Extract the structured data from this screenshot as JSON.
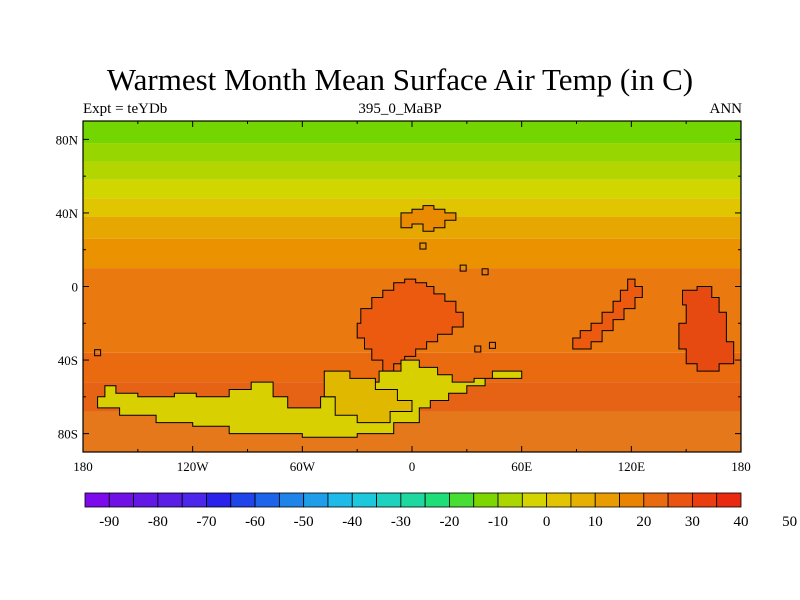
{
  "title": "Warmest Month Mean Surface Air Temp (in C)",
  "subtitle_left": "Expt = teYDb",
  "subtitle_center": "395_0_MaBP",
  "subtitle_right": "ANN",
  "map": {
    "projection": "cylindrical-equidistant",
    "lon_range": [
      -180,
      180
    ],
    "lat_range": [
      -90,
      90
    ],
    "lon_ticks": [
      {
        "value": -180,
        "label": "180"
      },
      {
        "value": -120,
        "label": "120W"
      },
      {
        "value": -60,
        "label": "60W"
      },
      {
        "value": 0,
        "label": "0"
      },
      {
        "value": 60,
        "label": "60E"
      },
      {
        "value": 120,
        "label": "120E"
      },
      {
        "value": 180,
        "label": "180"
      }
    ],
    "lat_ticks": [
      {
        "value": 80,
        "label": "80N"
      },
      {
        "value": 40,
        "label": "40N"
      },
      {
        "value": 0,
        "label": "0"
      },
      {
        "value": -40,
        "label": "40S"
      },
      {
        "value": -80,
        "label": "80S"
      }
    ],
    "zonal_bands": [
      {
        "lat_from": 90,
        "lat_to": 78,
        "color": "#74d600"
      },
      {
        "lat_from": 78,
        "lat_to": 68,
        "color": "#97d600"
      },
      {
        "lat_from": 68,
        "lat_to": 58,
        "color": "#b4d600"
      },
      {
        "lat_from": 58,
        "lat_to": 48,
        "color": "#d2d600"
      },
      {
        "lat_from": 48,
        "lat_to": 38,
        "color": "#e0c600"
      },
      {
        "lat_from": 38,
        "lat_to": 26,
        "color": "#e6a800"
      },
      {
        "lat_from": 26,
        "lat_to": 10,
        "color": "#ea9200"
      },
      {
        "lat_from": 10,
        "lat_to": -36,
        "color": "#ea7a10"
      },
      {
        "lat_from": -36,
        "lat_to": -52,
        "color": "#ea6a10"
      },
      {
        "lat_from": -52,
        "lat_to": -68,
        "color": "#e66214"
      },
      {
        "lat_from": -68,
        "lat_to": -90,
        "color": "#e6781c"
      }
    ],
    "continents": [
      {
        "name": "north-block",
        "fill": "#ea8a00",
        "points": [
          [
            -6,
            40
          ],
          [
            0,
            40
          ],
          [
            0,
            42
          ],
          [
            6,
            42
          ],
          [
            6,
            44
          ],
          [
            12,
            44
          ],
          [
            12,
            42
          ],
          [
            18,
            42
          ],
          [
            18,
            40
          ],
          [
            24,
            40
          ],
          [
            24,
            36
          ],
          [
            18,
            36
          ],
          [
            18,
            32
          ],
          [
            12,
            32
          ],
          [
            12,
            30
          ],
          [
            6,
            30
          ],
          [
            6,
            34
          ],
          [
            0,
            34
          ],
          [
            0,
            32
          ],
          [
            -6,
            32
          ]
        ]
      },
      {
        "name": "central-block",
        "fill": "#ec5a10",
        "points": [
          [
            -28,
            -12
          ],
          [
            -22,
            -12
          ],
          [
            -22,
            -6
          ],
          [
            -16,
            -6
          ],
          [
            -16,
            -2
          ],
          [
            -10,
            -2
          ],
          [
            -10,
            2
          ],
          [
            -4,
            2
          ],
          [
            -4,
            4
          ],
          [
            0,
            4
          ],
          [
            2,
            4
          ],
          [
            2,
            2
          ],
          [
            8,
            2
          ],
          [
            8,
            0
          ],
          [
            12,
            0
          ],
          [
            12,
            -4
          ],
          [
            18,
            -4
          ],
          [
            18,
            -8
          ],
          [
            24,
            -8
          ],
          [
            24,
            -14
          ],
          [
            28,
            -14
          ],
          [
            28,
            -22
          ],
          [
            22,
            -22
          ],
          [
            22,
            -26
          ],
          [
            14,
            -26
          ],
          [
            14,
            -30
          ],
          [
            8,
            -30
          ],
          [
            8,
            -34
          ],
          [
            2,
            -34
          ],
          [
            2,
            -38
          ],
          [
            -4,
            -38
          ],
          [
            -4,
            -42
          ],
          [
            -10,
            -42
          ],
          [
            -10,
            -46
          ],
          [
            -16,
            -46
          ],
          [
            -16,
            -40
          ],
          [
            -22,
            -40
          ],
          [
            -22,
            -34
          ],
          [
            -26,
            -34
          ],
          [
            -26,
            -28
          ],
          [
            -30,
            -28
          ],
          [
            -30,
            -20
          ],
          [
            -28,
            -20
          ]
        ]
      },
      {
        "name": "east-arc",
        "fill": "#ec5a10",
        "points": [
          [
            88,
            -28
          ],
          [
            92,
            -28
          ],
          [
            92,
            -24
          ],
          [
            98,
            -24
          ],
          [
            98,
            -20
          ],
          [
            104,
            -20
          ],
          [
            104,
            -14
          ],
          [
            110,
            -14
          ],
          [
            110,
            -8
          ],
          [
            114,
            -8
          ],
          [
            114,
            -2
          ],
          [
            118,
            -2
          ],
          [
            118,
            4
          ],
          [
            122,
            4
          ],
          [
            122,
            0
          ],
          [
            126,
            0
          ],
          [
            126,
            -6
          ],
          [
            122,
            -6
          ],
          [
            122,
            -12
          ],
          [
            116,
            -12
          ],
          [
            116,
            -18
          ],
          [
            110,
            -18
          ],
          [
            110,
            -24
          ],
          [
            104,
            -24
          ],
          [
            104,
            -30
          ],
          [
            98,
            -30
          ],
          [
            98,
            -34
          ],
          [
            88,
            -34
          ]
        ]
      },
      {
        "name": "east-block",
        "fill": "#e64a10",
        "points": [
          [
            148,
            -2
          ],
          [
            156,
            -2
          ],
          [
            156,
            0
          ],
          [
            164,
            0
          ],
          [
            164,
            -6
          ],
          [
            168,
            -6
          ],
          [
            168,
            -14
          ],
          [
            172,
            -14
          ],
          [
            172,
            -30
          ],
          [
            176,
            -30
          ],
          [
            176,
            -42
          ],
          [
            168,
            -42
          ],
          [
            168,
            -46
          ],
          [
            156,
            -46
          ],
          [
            156,
            -42
          ],
          [
            150,
            -42
          ],
          [
            150,
            -34
          ],
          [
            146,
            -34
          ],
          [
            146,
            -20
          ],
          [
            150,
            -20
          ],
          [
            150,
            -10
          ],
          [
            148,
            -10
          ]
        ]
      },
      {
        "name": "south-ring",
        "fill": "#d8d000",
        "points": [
          [
            -168,
            -54
          ],
          [
            -162,
            -54
          ],
          [
            -162,
            -58
          ],
          [
            -150,
            -58
          ],
          [
            -150,
            -60
          ],
          [
            -130,
            -60
          ],
          [
            -130,
            -58
          ],
          [
            -118,
            -58
          ],
          [
            -118,
            -60
          ],
          [
            -100,
            -60
          ],
          [
            -100,
            -56
          ],
          [
            -88,
            -56
          ],
          [
            -88,
            -52
          ],
          [
            -76,
            -52
          ],
          [
            -76,
            -60
          ],
          [
            -68,
            -60
          ],
          [
            -68,
            -66
          ],
          [
            -50,
            -66
          ],
          [
            -50,
            -60
          ],
          [
            -34,
            -60
          ],
          [
            -34,
            -52
          ],
          [
            -18,
            -52
          ],
          [
            -18,
            -46
          ],
          [
            -6,
            -46
          ],
          [
            -6,
            -40
          ],
          [
            4,
            -40
          ],
          [
            4,
            -44
          ],
          [
            14,
            -44
          ],
          [
            14,
            -48
          ],
          [
            22,
            -48
          ],
          [
            22,
            -52
          ],
          [
            34,
            -52
          ],
          [
            34,
            -50
          ],
          [
            44,
            -50
          ],
          [
            44,
            -46
          ],
          [
            60,
            -46
          ],
          [
            60,
            -50
          ],
          [
            40,
            -50
          ],
          [
            40,
            -54
          ],
          [
            30,
            -54
          ],
          [
            30,
            -58
          ],
          [
            20,
            -58
          ],
          [
            20,
            -62
          ],
          [
            10,
            -62
          ],
          [
            10,
            -66
          ],
          [
            4,
            -66
          ],
          [
            4,
            -74
          ],
          [
            -10,
            -74
          ],
          [
            -10,
            -80
          ],
          [
            -30,
            -80
          ],
          [
            -30,
            -82
          ],
          [
            -60,
            -82
          ],
          [
            -60,
            -80
          ],
          [
            -100,
            -80
          ],
          [
            -100,
            -76
          ],
          [
            -120,
            -76
          ],
          [
            -120,
            -74
          ],
          [
            -140,
            -74
          ],
          [
            -140,
            -70
          ],
          [
            -160,
            -70
          ],
          [
            -160,
            -66
          ],
          [
            -172,
            -66
          ],
          [
            -172,
            -60
          ],
          [
            -168,
            -60
          ]
        ]
      },
      {
        "name": "south-inner",
        "fill": "#e0b800",
        "points": [
          [
            -48,
            -46
          ],
          [
            -34,
            -46
          ],
          [
            -34,
            -50
          ],
          [
            -20,
            -50
          ],
          [
            -20,
            -56
          ],
          [
            -8,
            -56
          ],
          [
            -8,
            -62
          ],
          [
            0,
            -62
          ],
          [
            0,
            -68
          ],
          [
            -12,
            -68
          ],
          [
            -12,
            -74
          ],
          [
            -30,
            -74
          ],
          [
            -30,
            -70
          ],
          [
            -42,
            -70
          ],
          [
            -42,
            -60
          ],
          [
            -48,
            -60
          ]
        ]
      }
    ],
    "small_islands": [
      {
        "lon": -172,
        "lat": -36,
        "size": 3
      },
      {
        "lon": 6,
        "lat": 22,
        "size": 3
      },
      {
        "lon": 36,
        "lat": -34,
        "size": 3
      },
      {
        "lon": 44,
        "lat": -32,
        "size": 3
      },
      {
        "lon": 28,
        "lat": 10,
        "size": 3
      },
      {
        "lon": 40,
        "lat": 8,
        "size": 3
      }
    ]
  },
  "colorbar": {
    "colors": [
      "#7c0aed",
      "#7010e6",
      "#6418e6",
      "#5a1ee6",
      "#4c26ea",
      "#2a22ea",
      "#1e44ea",
      "#1e64ea",
      "#1e84ea",
      "#1e9eea",
      "#1ebaea",
      "#1ec8dc",
      "#1ed2c0",
      "#1ed8a0",
      "#1ede78",
      "#46de32",
      "#7ed600",
      "#acd600",
      "#d4d400",
      "#e2c400",
      "#e6b000",
      "#e89c00",
      "#ea8400",
      "#ea6a10",
      "#ea5410",
      "#ea3e10",
      "#ea2a10"
    ],
    "labels": [
      "-90",
      "-80",
      "-70",
      "-60",
      "-50",
      "-40",
      "-30",
      "-20",
      "-10",
      "0",
      "10",
      "20",
      "30",
      "40",
      "50"
    ]
  }
}
